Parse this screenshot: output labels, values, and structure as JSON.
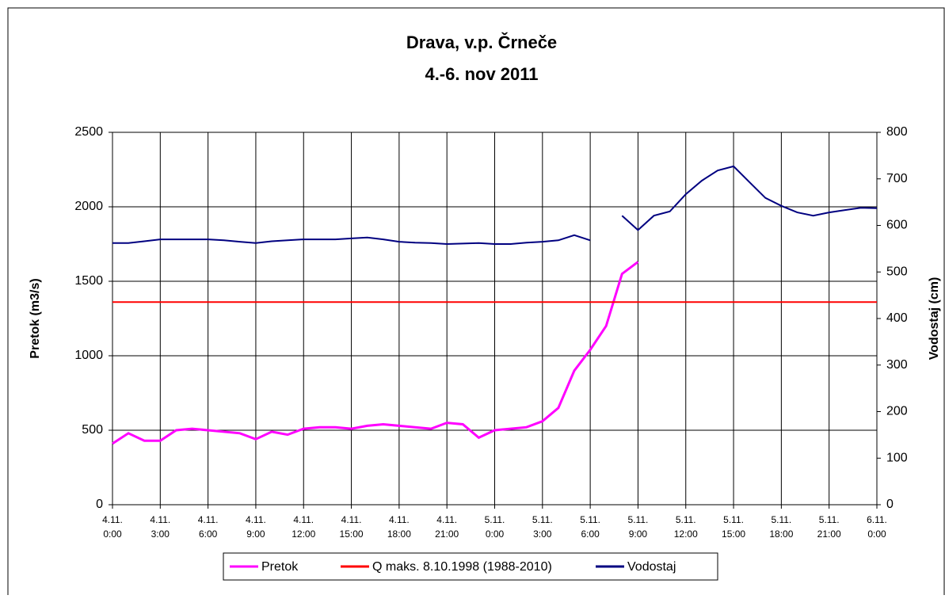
{
  "chart_data": {
    "type": "line",
    "title": "Drava, v.p. Črneče",
    "subtitle": "4.-6. nov 2011",
    "y_label": "Pretok (m3/s)",
    "y2_label": "Vodostaj (cm)",
    "x": [
      "4.11. 0:00",
      "4.11. 1:00",
      "4.11. 2:00",
      "4.11. 3:00",
      "4.11. 4:00",
      "4.11. 5:00",
      "4.11. 6:00",
      "4.11. 7:00",
      "4.11. 8:00",
      "4.11. 9:00",
      "4.11. 10:00",
      "4.11. 11:00",
      "4.11. 12:00",
      "4.11. 13:00",
      "4.11. 14:00",
      "4.11. 15:00",
      "4.11. 16:00",
      "4.11. 17:00",
      "4.11. 18:00",
      "4.11. 19:00",
      "4.11. 20:00",
      "4.11. 21:00",
      "4.11. 22:00",
      "4.11. 23:00",
      "5.11. 0:00",
      "5.11. 1:00",
      "5.11. 2:00",
      "5.11. 3:00",
      "5.11. 4:00",
      "5.11. 5:00",
      "5.11. 6:00",
      "5.11. 7:00",
      "5.11. 8:00",
      "5.11. 9:00",
      "5.11. 10:00",
      "5.11. 11:00",
      "5.11. 12:00",
      "5.11. 13:00",
      "5.11. 14:00",
      "5.11. 15:00",
      "5.11. 16:00",
      "5.11. 17:00",
      "5.11. 18:00",
      "5.11. 19:00",
      "5.11. 20:00",
      "5.11. 21:00",
      "5.11. 22:00",
      "5.11. 23:00",
      "6.11. 0:00"
    ],
    "xlim": [
      "4.11. 0:00",
      "6.11. 0:00"
    ],
    "xticks": [
      "4.11. 0:00",
      "4.11. 3:00",
      "4.11. 6:00",
      "4.11. 9:00",
      "4.11. 12:00",
      "4.11. 15:00",
      "4.11. 18:00",
      "4.11. 21:00",
      "5.11. 0:00",
      "5.11. 3:00",
      "5.11. 6:00",
      "5.11. 9:00",
      "5.11. 12:00",
      "5.11. 15:00",
      "5.11. 18:00",
      "5.11. 21:00",
      "6.11. 0:00"
    ],
    "ylim": [
      0,
      2500
    ],
    "yticks": [
      0,
      500,
      1000,
      1500,
      2000,
      2500
    ],
    "y2lim": [
      0,
      800
    ],
    "y2ticks": [
      0,
      100,
      200,
      300,
      400,
      500,
      600,
      700,
      800
    ],
    "grid": true,
    "legend": "bottom",
    "series": [
      {
        "name": "Pretok",
        "color": "#ff00ff",
        "axis": "y",
        "values": [
          410,
          480,
          430,
          430,
          500,
          510,
          500,
          490,
          480,
          440,
          490,
          470,
          510,
          520,
          520,
          510,
          530,
          540,
          530,
          520,
          510,
          550,
          540,
          450,
          500,
          510,
          520,
          560,
          650,
          900,
          1040,
          1200,
          1550,
          1630,
          null,
          null,
          null,
          null,
          null,
          null,
          null,
          null,
          null,
          null,
          null,
          null,
          null,
          null,
          null
        ]
      },
      {
        "name": "Q maks. 8.10.1998 (1988-2010)",
        "color": "#ff0000",
        "axis": "y",
        "values": [
          1360,
          1360,
          1360,
          1360,
          1360,
          1360,
          1360,
          1360,
          1360,
          1360,
          1360,
          1360,
          1360,
          1360,
          1360,
          1360,
          1360,
          1360,
          1360,
          1360,
          1360,
          1360,
          1360,
          1360,
          1360,
          1360,
          1360,
          1360,
          1360,
          1360,
          1360,
          1360,
          1360,
          1360,
          1360,
          1360,
          1360,
          1360,
          1360,
          1360,
          1360,
          1360,
          1360,
          1360,
          1360,
          1360,
          1360,
          1360,
          1360
        ]
      },
      {
        "name": "Vodostaj",
        "color": "#000080",
        "axis": "y2",
        "values": [
          562,
          562,
          566,
          570,
          570,
          570,
          570,
          568,
          565,
          562,
          566,
          568,
          570,
          570,
          570,
          572,
          574,
          570,
          565,
          563,
          562,
          560,
          561,
          562,
          560,
          560,
          563,
          565,
          568,
          579,
          568,
          null,
          621,
          590,
          621,
          630,
          667,
          696,
          718,
          727,
          693,
          659,
          642,
          628,
          621,
          628,
          633,
          638,
          637
        ]
      }
    ]
  }
}
